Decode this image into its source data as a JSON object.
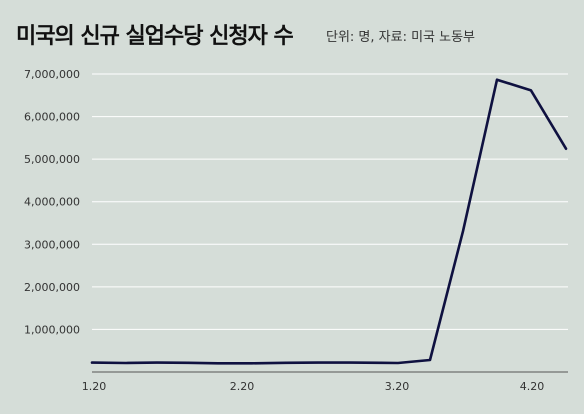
{
  "header": {
    "title": "미국의 신규 실업수당 신청자 수",
    "subtitle": "단위: 명, 자료: 미국 노동부"
  },
  "colors": {
    "background": "#d5ddd8",
    "line": "#0f1140",
    "grid": "#ffffff"
  },
  "chart_data": {
    "type": "line",
    "title": "미국의 신규 실업수당 신청자 수",
    "subtitle": "단위: 명, 자료: 미국 노동부",
    "xlabel": "",
    "ylabel": "",
    "ylim": [
      0,
      7000000
    ],
    "yticks": [
      1000000,
      2000000,
      3000000,
      4000000,
      5000000,
      6000000,
      7000000
    ],
    "ytick_labels": [
      "1,000,000",
      "2,000,000",
      "3,000,000",
      "4,000,000",
      "5,000,000",
      "6,000,000",
      "7,000,000"
    ],
    "xtick_labels": [
      "1.20",
      "2.20",
      "3.20",
      "4.20"
    ],
    "grid": true,
    "x": [
      "1.4",
      "1.11",
      "1.18",
      "1.25",
      "2.1",
      "2.8",
      "2.15",
      "2.22",
      "2.29",
      "3.7",
      "3.14",
      "3.21",
      "3.28",
      "4.4",
      "4.11",
      "4.18"
    ],
    "series": [
      {
        "values": [
          220000,
          212000,
          220000,
          215000,
          205000,
          205000,
          215000,
          220000,
          220000,
          215000,
          212000,
          282000,
          3307000,
          6867000,
          6615000,
          5245000
        ]
      }
    ]
  }
}
